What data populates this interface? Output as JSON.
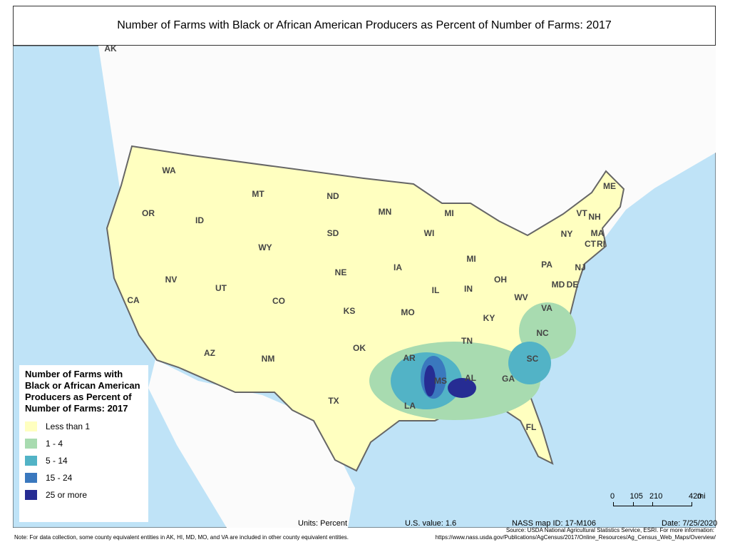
{
  "header": {
    "title": "Number of Farms with Black or African American Producers as Percent of Number of Farms:  2017"
  },
  "map": {
    "state_labels": [
      "AK",
      "WA",
      "OR",
      "CA",
      "NV",
      "ID",
      "MT",
      "WY",
      "UT",
      "AZ",
      "CO",
      "NM",
      "ND",
      "SD",
      "NE",
      "KS",
      "OK",
      "TX",
      "MN",
      "IA",
      "MO",
      "AR",
      "LA",
      "WI",
      "IL",
      "MS",
      "MI",
      "MI",
      "IN",
      "OH",
      "KY",
      "TN",
      "AL",
      "GA",
      "FL",
      "SC",
      "NC",
      "VA",
      "WV",
      "PA",
      "NY",
      "VT",
      "NH",
      "ME",
      "MA",
      "CT",
      "RI",
      "NJ",
      "MD",
      "DE"
    ]
  },
  "legend": {
    "title": "Number of Farms with Black or African American Producers as Percent of Number of Farms:  2017",
    "items": [
      {
        "label": "Less than 1",
        "color": "#ffffc0"
      },
      {
        "label": "1 - 4",
        "color": "#a8dbb0"
      },
      {
        "label": "5 - 14",
        "color": "#52b3c6"
      },
      {
        "label": "15 - 24",
        "color": "#3a78be"
      },
      {
        "label": "25 or more",
        "color": "#262c93"
      }
    ]
  },
  "scale_bar": {
    "ticks": [
      0,
      105,
      210,
      420
    ],
    "unit": "mi"
  },
  "footer": {
    "units": "Units: Percent",
    "us_value": "U.S. value: 1.6",
    "map_id": "NASS map ID: 17-M106",
    "date": "Date: 7/25/2020",
    "source": "Source: USDA National Agricultural Statistics Service, ESRI. For more information:",
    "url": "https://www.nass.usda.gov/Publications/AgCensus/2017/Online_Resources/Ag_Census_Web_Maps/Overview/",
    "note": "Note: For data collection, some county equivalent entities in AK, HI, MD, MO, and VA are included in other county equivalent entities."
  }
}
